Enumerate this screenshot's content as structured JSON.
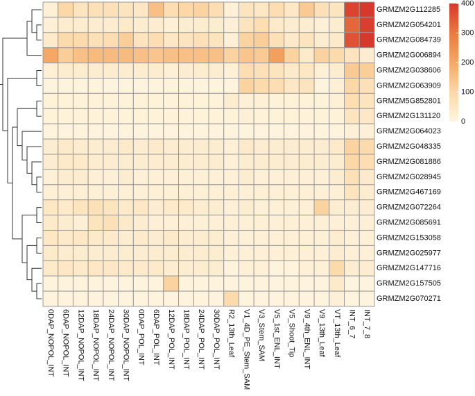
{
  "chart_data": {
    "type": "heatmap",
    "columns": [
      "0DAP_NOPOL_INT",
      "6DAP_NOPOL_INT",
      "12DAP_NOPOL_INT",
      "18DAP_NOPOL_INT",
      "24DAP_NOPOL_INT",
      "30DAP_NOPOL_INT",
      "0DAP_POL_INT",
      "6DAP_POL_INT",
      "12DAP_POL_INT",
      "18DAP_POL_INT",
      "24DAP_POL_INT",
      "30DAP_POL_INT",
      "R2_13th_Leaf",
      "V1_4D_PE_Stem_SAM",
      "V3_Stem_SAM",
      "V5_1st_ENL_INT",
      "V5_Shoot_Tip",
      "V9_4th_ENL_INT",
      "V9_13th_Leaf",
      "VT_13th_Leaf",
      "INT_6_7",
      "INT_7_8"
    ],
    "rows": [
      "GRMZM2G112285",
      "GRMZM2G054201",
      "GRMZM2G084739",
      "GRMZM2G006894",
      "GRMZM2G038606",
      "GRMZM2G063909",
      "GRMZM5G852801",
      "GRMZM2G131120",
      "GRMZM2G064023",
      "GRMZM2G048335",
      "GRMZM2G081886",
      "GRMZM2G028945",
      "GRMZM2G467169",
      "GRMZM2G072264",
      "GRMZM2G085691",
      "GRMZM2G153058",
      "GRMZM2G025977",
      "GRMZM2G147716",
      "GRMZM2G157505",
      "GRMZM2G070271"
    ],
    "values": [
      [
        20,
        100,
        60,
        70,
        70,
        60,
        50,
        150,
        80,
        100,
        110,
        80,
        20,
        60,
        50,
        80,
        50,
        130,
        70,
        60,
        380,
        400
      ],
      [
        20,
        30,
        30,
        30,
        30,
        40,
        30,
        30,
        20,
        30,
        30,
        30,
        20,
        60,
        80,
        40,
        30,
        30,
        20,
        30,
        330,
        390
      ],
      [
        40,
        90,
        90,
        70,
        80,
        120,
        60,
        80,
        50,
        60,
        70,
        60,
        20,
        110,
        120,
        70,
        40,
        60,
        30,
        40,
        360,
        400
      ],
      [
        200,
        120,
        150,
        160,
        160,
        160,
        150,
        140,
        150,
        150,
        150,
        150,
        110,
        140,
        130,
        220,
        110,
        40,
        110,
        90,
        60,
        30
      ],
      [
        20,
        30,
        30,
        30,
        30,
        30,
        30,
        30,
        20,
        30,
        30,
        30,
        20,
        80,
        70,
        60,
        40,
        50,
        20,
        30,
        130,
        120
      ],
      [
        10,
        10,
        10,
        10,
        10,
        10,
        10,
        10,
        10,
        10,
        10,
        10,
        10,
        110,
        90,
        80,
        50,
        60,
        10,
        20,
        100,
        70
      ],
      [
        15,
        15,
        15,
        15,
        15,
        15,
        15,
        15,
        15,
        15,
        15,
        15,
        30,
        20,
        20,
        15,
        15,
        15,
        15,
        20,
        80,
        60
      ],
      [
        15,
        15,
        15,
        15,
        15,
        15,
        15,
        15,
        15,
        15,
        15,
        15,
        15,
        20,
        15,
        15,
        15,
        15,
        15,
        15,
        60,
        50
      ],
      [
        10,
        10,
        10,
        10,
        10,
        10,
        10,
        10,
        10,
        10,
        10,
        10,
        10,
        10,
        10,
        10,
        10,
        10,
        10,
        10,
        20,
        20
      ],
      [
        30,
        40,
        30,
        30,
        30,
        40,
        30,
        40,
        30,
        30,
        30,
        30,
        20,
        40,
        30,
        30,
        30,
        30,
        30,
        40,
        110,
        90
      ],
      [
        30,
        40,
        40,
        30,
        30,
        30,
        30,
        30,
        30,
        30,
        30,
        30,
        20,
        30,
        30,
        30,
        30,
        30,
        30,
        30,
        100,
        80
      ],
      [
        20,
        30,
        30,
        20,
        20,
        30,
        20,
        20,
        20,
        20,
        20,
        20,
        20,
        30,
        20,
        20,
        20,
        20,
        20,
        30,
        70,
        40
      ],
      [
        20,
        20,
        20,
        20,
        20,
        20,
        20,
        20,
        20,
        20,
        20,
        20,
        20,
        20,
        20,
        20,
        20,
        20,
        20,
        20,
        60,
        30
      ],
      [
        50,
        40,
        60,
        70,
        60,
        40,
        50,
        30,
        40,
        40,
        30,
        30,
        20,
        30,
        20,
        20,
        20,
        20,
        110,
        30,
        30,
        30
      ],
      [
        40,
        30,
        20,
        60,
        70,
        40,
        30,
        20,
        20,
        20,
        20,
        20,
        20,
        20,
        20,
        20,
        20,
        20,
        20,
        20,
        20,
        20
      ],
      [
        50,
        40,
        50,
        40,
        40,
        30,
        40,
        30,
        40,
        30,
        30,
        30,
        20,
        20,
        20,
        20,
        20,
        20,
        20,
        30,
        20,
        20
      ],
      [
        40,
        30,
        30,
        30,
        30,
        30,
        30,
        30,
        30,
        30,
        30,
        30,
        20,
        20,
        20,
        20,
        20,
        20,
        20,
        30,
        20,
        20
      ],
      [
        40,
        50,
        40,
        50,
        50,
        40,
        40,
        40,
        30,
        30,
        30,
        30,
        10,
        20,
        20,
        10,
        10,
        20,
        20,
        90,
        30,
        30
      ],
      [
        10,
        10,
        10,
        10,
        10,
        10,
        10,
        10,
        110,
        10,
        10,
        10,
        10,
        10,
        10,
        10,
        10,
        10,
        10,
        40,
        10,
        10
      ],
      [
        10,
        10,
        10,
        10,
        10,
        10,
        10,
        10,
        10,
        10,
        10,
        10,
        90,
        10,
        10,
        10,
        10,
        10,
        10,
        20,
        10,
        10
      ]
    ],
    "zlim": [
      0,
      400
    ],
    "colorbar_ticks": [
      0,
      100,
      200,
      300,
      400
    ],
    "colorscale": [
      "#fef6e2",
      "#fbd8a6",
      "#f5a865",
      "#ea7a41",
      "#d7382c"
    ]
  }
}
